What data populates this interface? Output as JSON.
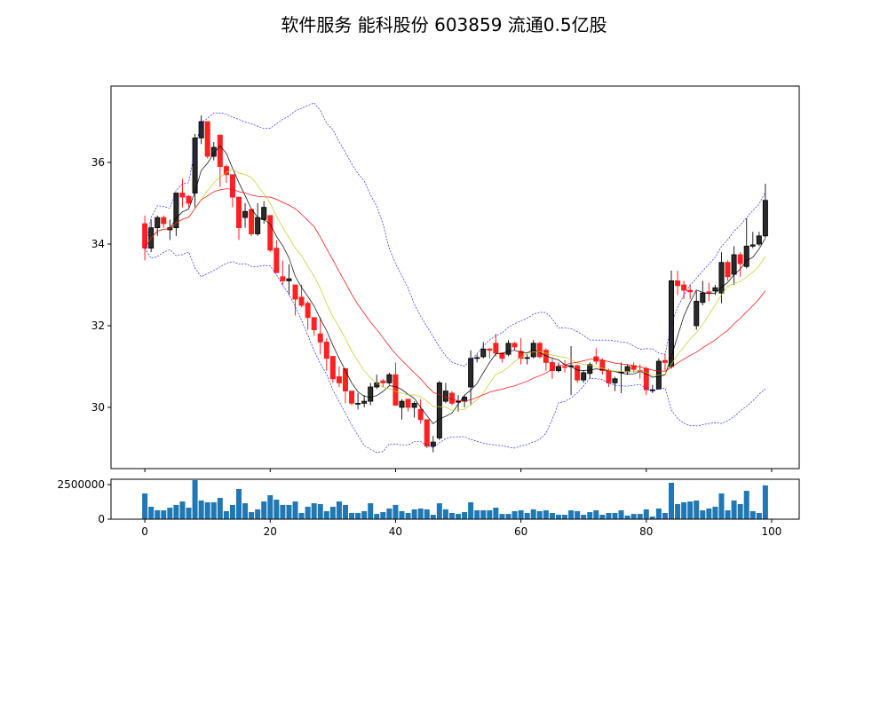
{
  "chart_data": {
    "type": "candlestick",
    "title": "软件服务 能科股份 603859 流通0.5亿股",
    "xlabel": "",
    "ylabel": "",
    "xlim": [
      -5.4,
      104.4
    ],
    "ylim": [
      28.5,
      37.87
    ],
    "volume_ylim": [
      0,
      2885000
    ],
    "x_ticks": [
      0,
      20,
      40,
      60,
      80,
      100
    ],
    "y_ticks": [
      30,
      32,
      34,
      36
    ],
    "volume_y_ticks": [
      0,
      2500000
    ],
    "grid": false,
    "colors": {
      "up": "#222222",
      "down": "#ff2020",
      "ma5": "#000000",
      "ma10": "#c8c820",
      "ma20": "#ff0000",
      "bollinger": "#0000ff",
      "volume": "#1f77b4"
    },
    "moving_averages": [
      5,
      10,
      20
    ],
    "bollinger": {
      "period": 20,
      "k": 2
    },
    "ohlc": [
      [
        34.5,
        33.9,
        34.7,
        33.6
      ],
      [
        33.9,
        34.4,
        34.6,
        33.8
      ],
      [
        34.4,
        34.65,
        34.7,
        34.2
      ],
      [
        34.65,
        34.5,
        34.7,
        34.4
      ],
      [
        34.35,
        34.4,
        34.6,
        34.1
      ],
      [
        34.4,
        35.25,
        35.25,
        34.2
      ],
      [
        35.25,
        35.15,
        35.6,
        34.9
      ],
      [
        35.17,
        35.0,
        35.2,
        34.9
      ],
      [
        35.25,
        36.6,
        36.7,
        34.9
      ],
      [
        36.6,
        37.0,
        37.15,
        36.45
      ],
      [
        37.0,
        36.15,
        37.0,
        36.1
      ],
      [
        36.15,
        36.37,
        36.5,
        36.05
      ],
      [
        36.67,
        35.9,
        36.67,
        35.4
      ],
      [
        35.9,
        35.7,
        35.95,
        35.5
      ],
      [
        35.7,
        35.15,
        35.7,
        34.9
      ],
      [
        35.15,
        34.4,
        35.15,
        34.1
      ],
      [
        34.65,
        34.8,
        35.0,
        34.4
      ],
      [
        34.85,
        34.25,
        34.85,
        34.2
      ],
      [
        34.25,
        34.65,
        35.0,
        34.2
      ],
      [
        34.6,
        34.9,
        35.05,
        34.5
      ],
      [
        34.7,
        33.85,
        34.7,
        33.8
      ],
      [
        33.9,
        33.3,
        34.1,
        33.3
      ],
      [
        33.2,
        33.1,
        33.6,
        33.0
      ],
      [
        33.1,
        33.15,
        33.5,
        32.75
      ],
      [
        33.0,
        32.65,
        33.0,
        32.25
      ],
      [
        32.7,
        32.5,
        33.0,
        32.45
      ],
      [
        32.55,
        32.2,
        32.6,
        31.9
      ],
      [
        32.2,
        31.9,
        32.2,
        31.75
      ],
      [
        31.8,
        31.6,
        32.2,
        31.3
      ],
      [
        31.6,
        31.2,
        31.7,
        30.9
      ],
      [
        31.25,
        30.7,
        31.25,
        30.6
      ],
      [
        30.75,
        30.6,
        31.0,
        30.5
      ],
      [
        30.95,
        30.4,
        30.95,
        30.1
      ],
      [
        30.4,
        30.1,
        30.4,
        30.05
      ],
      [
        30.1,
        30.1,
        30.35,
        29.95
      ],
      [
        30.1,
        30.15,
        30.3,
        30.0
      ],
      [
        30.15,
        30.5,
        30.6,
        30.05
      ],
      [
        30.5,
        30.6,
        30.8,
        30.45
      ],
      [
        30.65,
        30.6,
        30.7,
        30.5
      ],
      [
        30.6,
        30.8,
        30.85,
        30.55
      ],
      [
        30.8,
        30.05,
        31.1,
        30.05
      ],
      [
        30.0,
        30.15,
        30.2,
        29.7
      ],
      [
        30.2,
        30.0,
        30.2,
        29.9
      ],
      [
        30.0,
        30.1,
        30.15,
        29.75
      ],
      [
        29.95,
        29.7,
        30.2,
        29.6
      ],
      [
        29.7,
        29.05,
        29.7,
        29.0
      ],
      [
        29.05,
        29.15,
        29.3,
        28.9
      ],
      [
        29.25,
        30.6,
        30.65,
        29.2
      ],
      [
        30.15,
        30.4,
        30.6,
        30.1
      ],
      [
        30.35,
        30.1,
        30.4,
        30.05
      ],
      [
        30.13,
        30.15,
        30.3,
        29.9
      ],
      [
        30.15,
        30.25,
        30.3,
        30.0
      ],
      [
        30.5,
        31.2,
        31.4,
        30.05
      ],
      [
        31.2,
        31.22,
        31.3,
        31.1
      ],
      [
        31.24,
        31.43,
        31.6,
        31.2
      ],
      [
        31.43,
        31.4,
        31.45,
        31.2
      ],
      [
        31.57,
        31.33,
        31.8,
        31.25
      ],
      [
        31.33,
        31.2,
        31.35,
        31.1
      ],
      [
        31.3,
        31.57,
        31.65,
        31.25
      ],
      [
        31.57,
        31.48,
        31.6,
        31.4
      ],
      [
        31.37,
        31.2,
        31.7,
        31.05
      ],
      [
        31.2,
        31.22,
        31.3,
        31.05
      ],
      [
        31.24,
        31.57,
        31.65,
        31.2
      ],
      [
        31.57,
        31.24,
        31.6,
        31.2
      ],
      [
        31.4,
        31.1,
        31.45,
        30.9
      ],
      [
        31.1,
        30.9,
        31.2,
        30.7
      ],
      [
        30.9,
        31.0,
        31.1,
        30.85
      ],
      [
        31.0,
        30.98,
        31.15,
        30.85
      ],
      [
        31.0,
        31.02,
        31.5,
        30.3
      ],
      [
        31.02,
        30.67,
        31.05,
        30.6
      ],
      [
        30.67,
        30.85,
        30.9,
        30.6
      ],
      [
        30.83,
        31.05,
        31.1,
        30.7
      ],
      [
        31.24,
        31.13,
        31.45,
        31.05
      ],
      [
        31.15,
        30.9,
        31.2,
        30.8
      ],
      [
        30.9,
        30.6,
        30.95,
        30.5
      ],
      [
        30.6,
        30.7,
        30.75,
        30.4
      ],
      [
        30.85,
        30.87,
        31.1,
        30.35
      ],
      [
        30.87,
        31.0,
        31.05,
        30.8
      ],
      [
        31.02,
        30.93,
        31.1,
        30.85
      ],
      [
        30.9,
        30.89,
        31.05,
        30.7
      ],
      [
        30.95,
        30.43,
        31.0,
        30.3
      ],
      [
        30.42,
        30.43,
        30.55,
        30.35
      ],
      [
        30.45,
        31.13,
        31.2,
        30.45
      ],
      [
        31.15,
        31.1,
        31.3,
        30.9
      ],
      [
        31.0,
        33.1,
        33.35,
        30.95
      ],
      [
        33.1,
        32.98,
        33.35,
        32.75
      ],
      [
        33.0,
        32.87,
        33.1,
        32.65
      ],
      [
        32.87,
        32.83,
        33.0,
        32.65
      ],
      [
        32.0,
        32.6,
        32.85,
        31.9
      ],
      [
        32.57,
        32.8,
        33.1,
        32.5
      ],
      [
        32.83,
        32.82,
        33.05,
        32.6
      ],
      [
        32.85,
        32.93,
        33.0,
        32.75
      ],
      [
        32.8,
        33.55,
        33.8,
        32.55
      ],
      [
        33.55,
        33.2,
        33.6,
        33.1
      ],
      [
        33.26,
        33.74,
        33.95,
        33.0
      ],
      [
        33.74,
        33.52,
        33.8,
        33.2
      ],
      [
        33.45,
        33.95,
        34.63,
        33.4
      ],
      [
        33.95,
        33.98,
        34.3,
        33.9
      ],
      [
        34.0,
        34.2,
        34.3,
        33.95
      ],
      [
        34.2,
        35.07,
        35.48,
        34.15
      ]
    ],
    "volume": [
      1860000,
      900000,
      640000,
      640000,
      830000,
      1030000,
      1280000,
      830000,
      2820000,
      1350000,
      1220000,
      1220000,
      1540000,
      580000,
      1030000,
      2180000,
      1150000,
      510000,
      710000,
      1280000,
      1730000,
      1410000,
      1030000,
      1030000,
      1280000,
      450000,
      900000,
      1150000,
      1090000,
      580000,
      900000,
      1280000,
      1030000,
      450000,
      450000,
      580000,
      1150000,
      380000,
      510000,
      770000,
      1030000,
      580000,
      450000,
      710000,
      770000,
      710000,
      320000,
      1150000,
      710000,
      450000,
      380000,
      510000,
      1220000,
      640000,
      640000,
      640000,
      830000,
      380000,
      380000,
      580000,
      640000,
      450000,
      710000,
      580000,
      640000,
      450000,
      320000,
      320000,
      640000,
      580000,
      320000,
      510000,
      640000,
      320000,
      450000,
      450000,
      640000,
      260000,
      380000,
      380000,
      710000,
      190000,
      770000,
      450000,
      2630000,
      1090000,
      1220000,
      1280000,
      1350000,
      640000,
      770000,
      900000,
      1860000,
      640000,
      1350000,
      1090000,
      2050000,
      580000,
      450000,
      2440000
    ]
  }
}
